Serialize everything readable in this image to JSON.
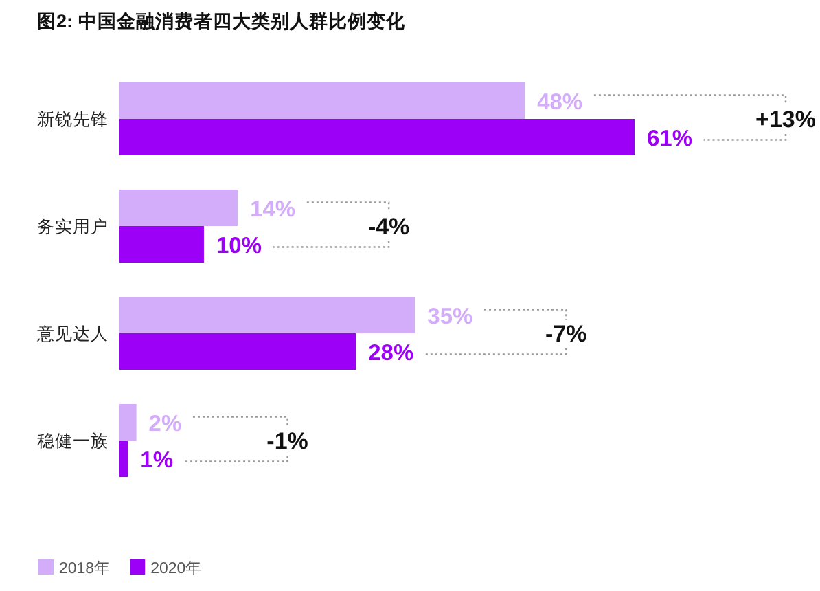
{
  "chart_data": {
    "type": "bar",
    "orientation": "horizontal",
    "title": "图2: 中国金融消费者四大类别人群比例变化",
    "categories": [
      "新锐先锋",
      "务实用户",
      "意见达人",
      "稳健一族"
    ],
    "series": [
      {
        "name": "2018年",
        "color": "#d3adf9",
        "values": [
          48,
          14,
          35,
          2
        ],
        "value_labels": [
          "48%",
          "14%",
          "35%",
          "2%"
        ]
      },
      {
        "name": "2020年",
        "color": "#9c00f7",
        "values": [
          61,
          10,
          28,
          1
        ],
        "value_labels": [
          "61%",
          "10%",
          "28%",
          "1%"
        ]
      }
    ],
    "annotations": [
      "+13%",
      "-4%",
      "-7%",
      "-1%"
    ],
    "legend": "bottom left",
    "tick_labels": "y"
  }
}
